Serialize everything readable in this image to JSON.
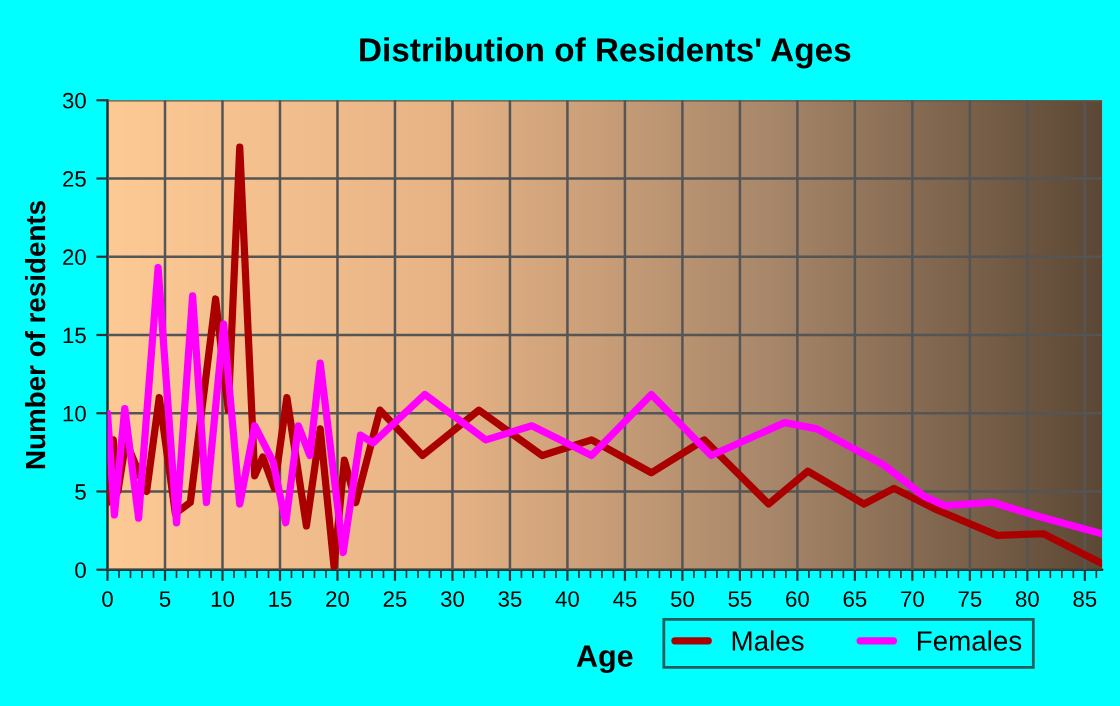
{
  "chart_data": {
    "type": "line",
    "title": "Distribution of Residents' Ages",
    "xlabel": "Age",
    "ylabel": "Number of residents",
    "xlim": [
      0,
      86.5
    ],
    "ylim": [
      0,
      30
    ],
    "xticks": [
      0,
      5,
      10,
      15,
      20,
      25,
      30,
      35,
      40,
      45,
      50,
      55,
      60,
      65,
      70,
      75,
      80,
      85
    ],
    "yticks": [
      0,
      5,
      10,
      15,
      20,
      25,
      30
    ],
    "grid": true,
    "legend": "bottom right",
    "line_style": "solid",
    "series": [
      {
        "name": "Males",
        "color": "#aa0000",
        "x": [
          0,
          0.5,
          0.9,
          1.6,
          3.4,
          4.5,
          5.9,
          7.2,
          9.4,
          10.5,
          11.5,
          12.8,
          13.5,
          14.5,
          15.6,
          17.3,
          18.5,
          19.7,
          20.6,
          21.6,
          23.7,
          27.4,
          32.3,
          37.8,
          42.1,
          47.3,
          51.9,
          57.5,
          60.9,
          65.8,
          68.4,
          72.2,
          77.4,
          81.4,
          86.5
        ],
        "values": [
          4.3,
          8.3,
          5,
          8.2,
          5,
          11,
          3.6,
          4.3,
          17.3,
          10.2,
          27,
          6,
          7.2,
          5.2,
          11,
          2.8,
          9,
          0.2,
          7,
          4.3,
          10.2,
          7.3,
          10.2,
          7.3,
          8.3,
          6.2,
          8.3,
          4.2,
          6.3,
          4.2,
          5.2,
          3.8,
          2.2,
          2.3,
          0.4
        ]
      },
      {
        "name": "Females",
        "color": "#ff00ff",
        "x": [
          0,
          0.6,
          1.5,
          2.7,
          4.4,
          6,
          7.4,
          8.6,
          10.1,
          11.5,
          12.8,
          14.4,
          15.5,
          16.6,
          17.6,
          18.5,
          20.5,
          22,
          23.1,
          27.6,
          32.9,
          36.9,
          42.1,
          47.3,
          52.5,
          58.9,
          61.7,
          67.5,
          71,
          72.8,
          77,
          81,
          86.5
        ],
        "values": [
          10,
          3.5,
          10.3,
          3.3,
          19.3,
          3,
          17.5,
          4.3,
          15.7,
          4.2,
          9.2,
          6.9,
          3,
          9.2,
          7.3,
          13.2,
          1.1,
          8.6,
          8.1,
          11.2,
          8.3,
          9.2,
          7.3,
          11.2,
          7.3,
          9.4,
          9,
          6.7,
          4.7,
          4.1,
          4.3,
          3.4,
          2.3
        ]
      }
    ]
  }
}
